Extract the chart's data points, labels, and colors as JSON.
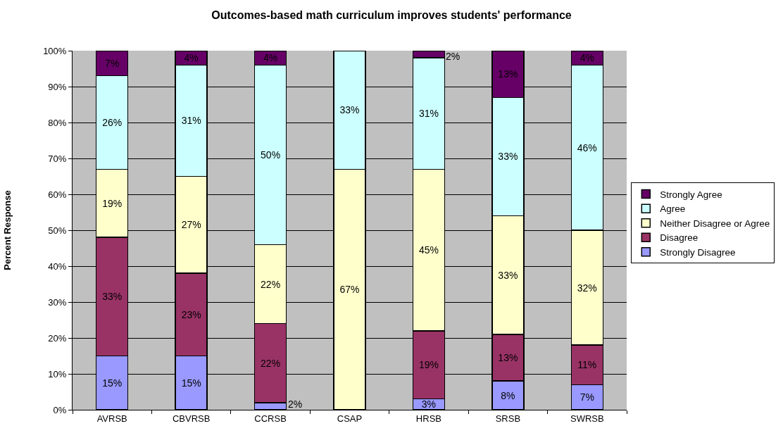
{
  "chart_data": {
    "type": "bar",
    "title": "Outcomes-based math curriculum improves students' performance",
    "ylabel": "Percent Response",
    "categories": [
      "AVRSB",
      "CBVRSB",
      "CCRSB",
      "CSAP",
      "HRSB",
      "SRSB",
      "SWRSB"
    ],
    "stacked": true,
    "ylim": [
      0,
      100
    ],
    "yticks": [
      {
        "value": 0,
        "label": "0%"
      },
      {
        "value": 10,
        "label": "10%"
      },
      {
        "value": 20,
        "label": "20%"
      },
      {
        "value": 30,
        "label": "30%"
      },
      {
        "value": 40,
        "label": "40%"
      },
      {
        "value": 50,
        "label": "50%"
      },
      {
        "value": 60,
        "label": "60%"
      },
      {
        "value": 70,
        "label": "70%"
      },
      {
        "value": 80,
        "label": "80%"
      },
      {
        "value": 90,
        "label": "90%"
      },
      {
        "value": 100,
        "label": "100%"
      }
    ],
    "grid": "y",
    "legend": "right",
    "series": [
      {
        "name": "Strongly Disagree",
        "color": "#9999ff",
        "values": [
          15,
          15,
          2,
          null,
          3,
          8,
          7
        ],
        "value_labels": [
          "15%",
          "15%",
          "2%",
          null,
          "3%",
          "8%",
          "7%"
        ]
      },
      {
        "name": "Disagree",
        "color": "#993366",
        "values": [
          33,
          23,
          22,
          null,
          19,
          13,
          11
        ],
        "value_labels": [
          "33%",
          "23%",
          "22%",
          null,
          "19%",
          "13%",
          "11%"
        ]
      },
      {
        "name": "Neither Disagree or Agree",
        "color": "#ffffcc",
        "values": [
          19,
          27,
          22,
          67,
          45,
          33,
          32
        ],
        "value_labels": [
          "19%",
          "27%",
          "22%",
          "67%",
          "45%",
          "33%",
          "32%"
        ]
      },
      {
        "name": "Agree",
        "color": "#ccffff",
        "values": [
          26,
          31,
          50,
          33,
          31,
          33,
          46
        ],
        "value_labels": [
          "26%",
          "31%",
          "50%",
          "33%",
          "31%",
          "33%",
          "46%"
        ]
      },
      {
        "name": "Strongly Agree",
        "color": "#660066",
        "values": [
          7,
          4,
          4,
          null,
          2,
          13,
          4
        ],
        "value_labels": [
          "7%",
          "4%",
          "4%",
          null,
          "2%",
          "13%",
          "4%"
        ]
      }
    ]
  }
}
